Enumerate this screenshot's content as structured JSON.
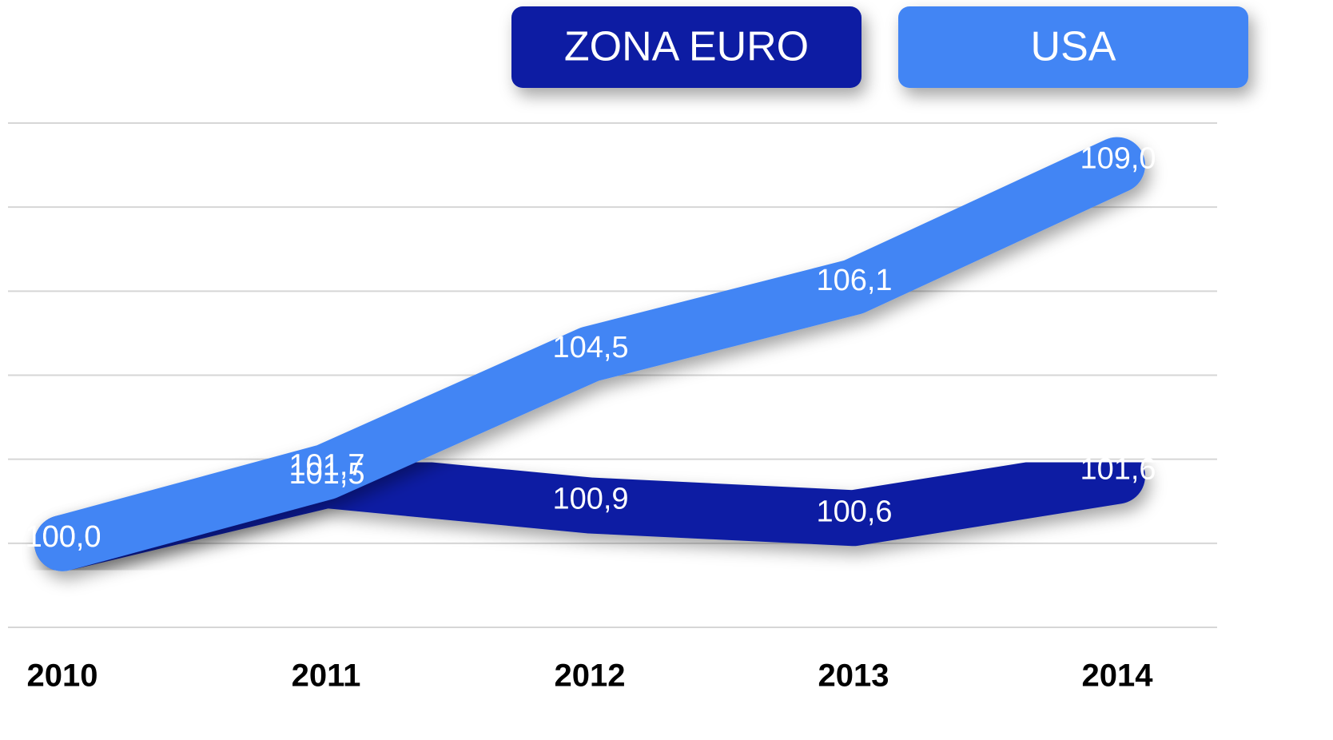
{
  "chart_data": {
    "type": "line",
    "categories": [
      "2010",
      "2011",
      "2012",
      "2013",
      "2014"
    ],
    "series": [
      {
        "name": "ZONA EURO",
        "color": "#0a1fa3",
        "values": [
          100.0,
          101.5,
          100.9,
          100.6,
          101.6
        ],
        "value_labels": [
          "100,0",
          "101,5",
          "100,9",
          "100,6",
          "101,6"
        ]
      },
      {
        "name": "USA",
        "color": "#4285f4",
        "values": [
          100.0,
          101.7,
          104.5,
          106.1,
          109.0
        ],
        "value_labels": [
          "100,0",
          "101,7",
          "104,5",
          "106,1",
          "109,0"
        ]
      }
    ],
    "ylim": [
      98,
      110
    ],
    "yticks": [
      98,
      100,
      102,
      104,
      106,
      108,
      110
    ],
    "grid": true,
    "legend": "top-right"
  }
}
